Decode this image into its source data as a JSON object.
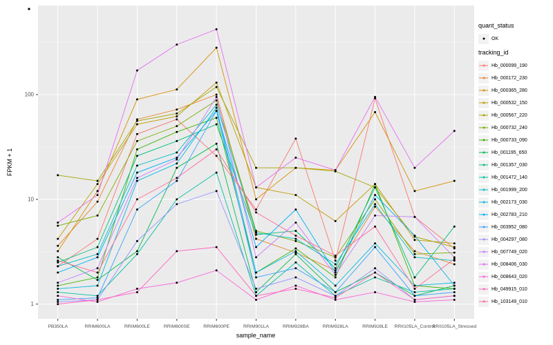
{
  "legend": {
    "quant_status_title": "quant_status",
    "quant_status_items": [
      {
        "label": "OK"
      }
    ],
    "tracking_id_title": "tracking_id"
  },
  "chart_data": {
    "type": "line",
    "title": "",
    "xlabel": "sample_name",
    "ylabel": "FPKM + 1",
    "y_scale": "log10",
    "y_ticks": [
      "1",
      "10",
      "100"
    ],
    "ylim": [
      0.9,
      600
    ],
    "grid": true,
    "legend_position": "right",
    "point_color": "#000000",
    "panel_color": "#EBEBEB",
    "categories": [
      "PB350LA",
      "RRIM600LA",
      "RRIM600LE",
      "RRIM600SE",
      "RRIM600PE",
      "RRIM901LA",
      "RRIM928BA",
      "RRIM928LA",
      "RRIM928LE",
      "RRII105LA_Control",
      "RRII105LA_Stressed"
    ],
    "series": [
      {
        "name": "Hb_000099_190",
        "color": "#F8766D",
        "values": [
          2.3,
          4.2,
          42,
          58,
          26,
          8,
          38,
          2.6,
          92,
          6.8,
          3.4
        ]
      },
      {
        "name": "Hb_000172_230",
        "color": "#EA8331",
        "values": [
          3.6,
          9.5,
          58,
          72,
          100,
          4.2,
          3.1,
          2.1,
          8.5,
          3.2,
          2.4
        ]
      },
      {
        "name": "Hb_000365_280",
        "color": "#D89000",
        "values": [
          3.2,
          12,
          90,
          112,
          280,
          10,
          20,
          19,
          68,
          12,
          15
        ]
      },
      {
        "name": "Hb_000532_150",
        "color": "#C09B00",
        "values": [
          4.2,
          14,
          52,
          62,
          130,
          13,
          11,
          6.2,
          14,
          4.1,
          3.8
        ]
      },
      {
        "name": "Hb_000567_220",
        "color": "#A3A500",
        "values": [
          17,
          15,
          56,
          66,
          118,
          20,
          20,
          18.5,
          13,
          4.4,
          3.5
        ]
      },
      {
        "name": "Hb_000732_240",
        "color": "#7CAE00",
        "values": [
          5.6,
          7,
          36,
          50,
          88,
          5,
          4,
          2.8,
          10,
          3,
          3.1
        ]
      },
      {
        "name": "Hb_000733_090",
        "color": "#39B600",
        "values": [
          1.5,
          1.8,
          30,
          44,
          60,
          2,
          3.4,
          1.8,
          14,
          1.5,
          1.4
        ]
      },
      {
        "name": "Hb_001195_650",
        "color": "#00BB4E",
        "values": [
          2.8,
          1.7,
          3.2,
          20,
          34,
          1.3,
          3,
          1.3,
          2,
          1.2,
          1.5
        ]
      },
      {
        "name": "Hb_001357_030",
        "color": "#00BF7D",
        "values": [
          2.5,
          3.5,
          26,
          36,
          52,
          4.6,
          5,
          2.2,
          13,
          1.8,
          5.5
        ]
      },
      {
        "name": "Hb_001472_140",
        "color": "#00C1A3",
        "values": [
          1.3,
          1.2,
          3,
          10,
          18,
          1.2,
          2.5,
          1.2,
          1.8,
          1.3,
          1.4
        ]
      },
      {
        "name": "Hb_001999_200",
        "color": "#00BFC4",
        "values": [
          2.3,
          3,
          21,
          28,
          80,
          4.8,
          4.2,
          2.4,
          9,
          2.8,
          2.6
        ]
      },
      {
        "name": "Hb_002173_030",
        "color": "#00BAE0",
        "values": [
          1.4,
          1.5,
          15,
          22,
          75,
          2,
          3.2,
          1.5,
          3.8,
          1.5,
          1.6
        ]
      },
      {
        "name": "Hb_002783_210",
        "color": "#00B0F6",
        "values": [
          2.0,
          2.8,
          18,
          25,
          70,
          3.5,
          8,
          2.0,
          11,
          4.5,
          1.5
        ]
      },
      {
        "name": "Hb_003952_080",
        "color": "#35A2FF",
        "values": [
          1.1,
          1.15,
          8,
          15,
          70,
          1.8,
          2.2,
          1.3,
          3.5,
          1.2,
          1.3
        ]
      },
      {
        "name": "Hb_004297_080",
        "color": "#9590FF",
        "values": [
          1.05,
          1.1,
          4,
          9,
          12,
          1.4,
          1.8,
          1.2,
          2.2,
          1.1,
          1.2
        ]
      },
      {
        "name": "Hb_007749_020",
        "color": "#C77CFF",
        "values": [
          1.6,
          2.2,
          16,
          24,
          95,
          2.8,
          6,
          1.9,
          7,
          6.8,
          2.8
        ]
      },
      {
        "name": "Hb_008406_030",
        "color": "#E76BF3",
        "values": [
          6,
          11,
          170,
          300,
          420,
          13,
          25,
          19,
          95,
          20,
          45
        ]
      },
      {
        "name": "Hb_008643_020",
        "color": "#FA62DB",
        "values": [
          1.2,
          1.05,
          1.4,
          1.6,
          2.1,
          1.1,
          1.5,
          1.1,
          1.3,
          1.05,
          1.1
        ]
      },
      {
        "name": "Hb_049915_010",
        "color": "#FF62BC",
        "values": [
          1.0,
          1.1,
          1.3,
          3.2,
          3.5,
          1.2,
          1.4,
          1.15,
          2.0,
          1.1,
          1.2
        ]
      },
      {
        "name": "Hb_103149_010",
        "color": "#FF6A98",
        "values": [
          2.6,
          2.0,
          10,
          16,
          30,
          7.5,
          4.5,
          2.9,
          5.5,
          1.4,
          2.7
        ]
      }
    ]
  }
}
